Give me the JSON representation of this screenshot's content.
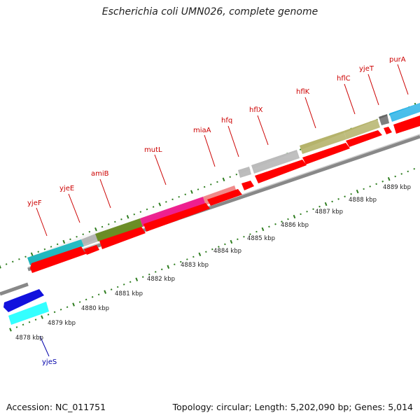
{
  "title": "Escherichia coli UMN026, complete genome",
  "accession": "Accession: NC_011751",
  "summary": "Topology: circular; Length: 5,202,090 bp; Genes: 5,014",
  "colors": {
    "label_top": "#cc0000",
    "label_bottom": "#0000aa",
    "cds": "#ff0000",
    "backbone": "#999999",
    "tick": "#2e7d1f"
  },
  "tick_labels": [
    "4878 kbp",
    "4879 kbp",
    "4880 kbp",
    "4881 kbp",
    "4882 kbp",
    "4883 kbp",
    "4884 kbp",
    "4885 kbp",
    "4886 kbp",
    "4887 kbp",
    "4888 kbp",
    "4889 kbp"
  ],
  "genes_top": [
    {
      "name": "yjeF",
      "color": "#22c4cc"
    },
    {
      "name": "yjeE",
      "color": "#bbbbbb"
    },
    {
      "name": "amiB",
      "color": "#6b8e23"
    },
    {
      "name": "mutL",
      "color": "#ee1f8f"
    },
    {
      "name": "miaA",
      "color": "#f08a8a"
    },
    {
      "name": "hfq",
      "color": "#bbbbbb"
    },
    {
      "name": "hflX",
      "color": "#bbbbbb"
    },
    {
      "name": "hflK",
      "color": "#b5b36b"
    },
    {
      "name": "hflC",
      "color": "#b5b36b"
    },
    {
      "name": "yjeT",
      "color": "#666666"
    },
    {
      "name": "purA",
      "color": "#22b0e6"
    }
  ],
  "genes_bottom": [
    {
      "name": "yjeS",
      "color": "#1111dd"
    }
  ],
  "bottom_gene_bar_color": "#33ffff"
}
